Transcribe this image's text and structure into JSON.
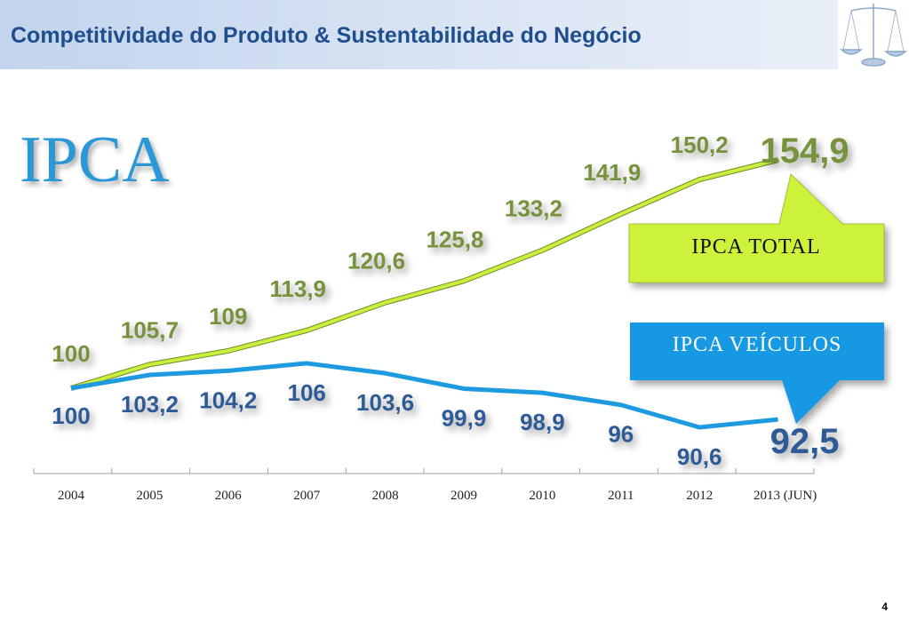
{
  "header": {
    "title": "Competitividade do Produto & Sustentabilidade do Negócio",
    "logo_icon": "balance-scale-icon"
  },
  "page_number": "4",
  "chart_data": {
    "type": "line",
    "title": "IPCA",
    "categories": [
      "2004",
      "2005",
      "2006",
      "2007",
      "2008",
      "2009",
      "2010",
      "2011",
      "2012",
      "2013 (JUN)"
    ],
    "series": [
      {
        "name": "IPCA TOTAL",
        "color": "#c8f03c",
        "label_color": "#76923c",
        "values": [
          100,
          105.7,
          109,
          113.9,
          120.6,
          125.8,
          133.2,
          141.9,
          150.2,
          154.9
        ],
        "labels": [
          "100",
          "105,7",
          "109",
          "113,9",
          "120,6",
          "125,8",
          "133,2",
          "141,9",
          "150,2",
          "154,9"
        ]
      },
      {
        "name": "IPCA VEÍCULOS",
        "color": "#1e9be0",
        "label_color": "#2e5a96",
        "values": [
          100,
          103.2,
          104.2,
          106,
          103.6,
          99.9,
          98.9,
          96,
          90.6,
          92.5
        ],
        "labels": [
          "100",
          "103,2",
          "104,2",
          "106",
          "103,6",
          "99,9",
          "98,9",
          "96",
          "90,6",
          "92,5"
        ]
      }
    ],
    "grid": false,
    "callout_colors": {
      "total": "#ccf23a",
      "veiculos": "#1598e2"
    }
  }
}
